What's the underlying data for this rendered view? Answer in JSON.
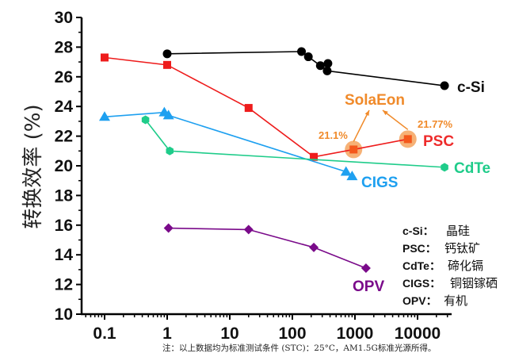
{
  "chart_data": {
    "type": "line",
    "title": "",
    "xlabel": "",
    "ylabel": "转换效率 (%)",
    "xscale": "log",
    "xlim": [
      0.06,
      40000
    ],
    "ylim": [
      10,
      30
    ],
    "x_ticks": [
      "0.1",
      "1",
      "10",
      "100",
      "1000",
      "10000"
    ],
    "x_tick_values": [
      0.1,
      1,
      10,
      100,
      1000,
      10000
    ],
    "y_ticks": [
      "10",
      "12",
      "14",
      "16",
      "18",
      "20",
      "22",
      "24",
      "26",
      "28",
      "30"
    ],
    "y_tick_values": [
      10,
      12,
      14,
      16,
      18,
      20,
      22,
      24,
      26,
      28,
      30
    ],
    "grid": false,
    "series": [
      {
        "name": "c-Si",
        "color": "#000000",
        "marker": "circle",
        "x": [
          1,
          140,
          180,
          280,
          370,
          360,
          27000
        ],
        "y": [
          27.55,
          27.7,
          27.35,
          26.75,
          26.9,
          26.4,
          25.4
        ]
      },
      {
        "name": "PSC",
        "color": "#ee1c1c",
        "marker": "square",
        "x": [
          0.1,
          1,
          20,
          220,
          950,
          7000
        ],
        "y": [
          27.3,
          26.8,
          23.9,
          20.6,
          21.1,
          21.8
        ]
      },
      {
        "name": "CIGS",
        "color": "#1ea0f0",
        "marker": "triangle",
        "x": [
          0.1,
          0.9,
          1.05,
          720,
          900
        ],
        "y": [
          23.3,
          23.6,
          23.4,
          19.6,
          19.3
        ]
      },
      {
        "name": "CdTe",
        "color": "#1fcc8a",
        "marker": "hexagon",
        "x": [
          0.45,
          1.1,
          27000
        ],
        "y": [
          23.1,
          21.0,
          19.9
        ]
      },
      {
        "name": "OPV",
        "color": "#7a0a8a",
        "marker": "diamond",
        "x": [
          1.05,
          20,
          220,
          1500
        ],
        "y": [
          15.8,
          15.7,
          14.5,
          13.1
        ]
      }
    ],
    "highlights": [
      {
        "label": "21.1%",
        "x": 950,
        "y": 21.1
      },
      {
        "label": "21.77%",
        "x": 7000,
        "y": 21.8
      }
    ],
    "annotation": {
      "text": "SolaEon",
      "color": "#f08a2a"
    },
    "legend": {
      "placement": "bottom-right",
      "entries": [
        {
          "abbr": "c-Si：",
          "name": "晶硅"
        },
        {
          "abbr": "PSC：",
          "name": "钙钛矿"
        },
        {
          "abbr": "CdTe：",
          "name": "碲化镉"
        },
        {
          "abbr": "CIGS：",
          "name": "铜铟镓硒"
        },
        {
          "abbr": "OPV：",
          "name": "有机"
        }
      ]
    },
    "footnote": "注：以上数据均为标准测试条件 (STC)：25°C，AM1.5G标准光源所得。"
  }
}
